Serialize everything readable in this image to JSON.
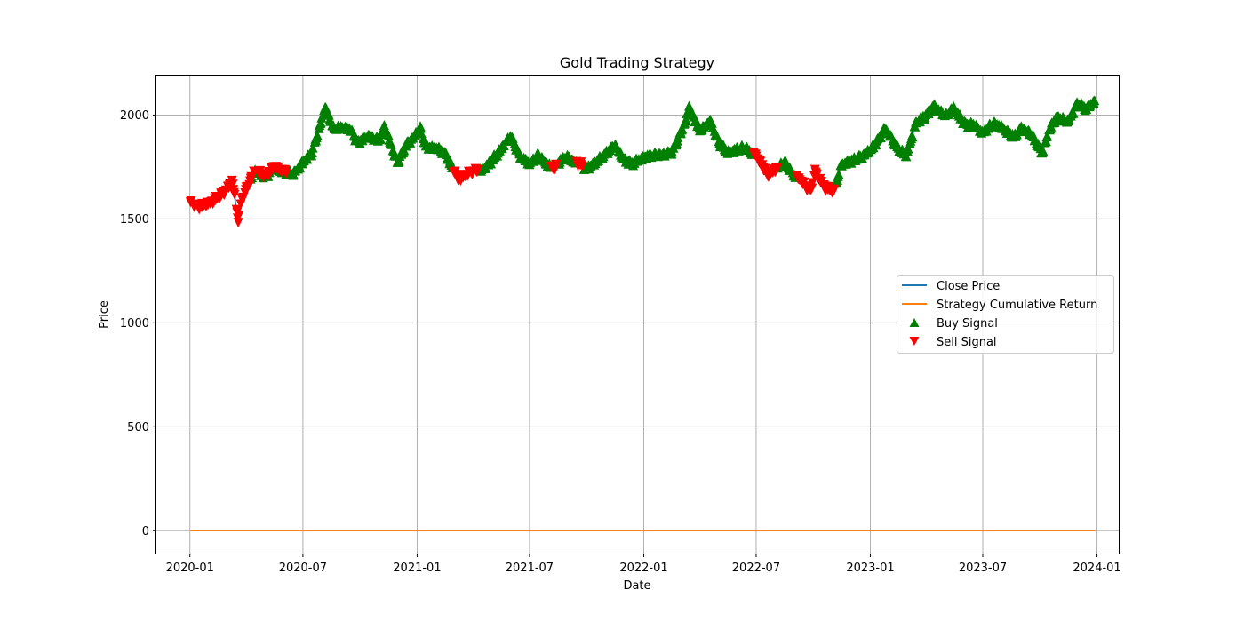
{
  "chart_data": {
    "type": "line",
    "title": "Gold Trading Strategy",
    "xlabel": "Date",
    "ylabel": "Price",
    "xlim": [
      "2019-11-08",
      "2024-02-05"
    ],
    "ylim": [
      -110,
      2190
    ],
    "x_ticks": [
      "2020-01",
      "2020-07",
      "2021-01",
      "2021-07",
      "2022-01",
      "2022-07",
      "2023-01",
      "2023-07",
      "2024-01"
    ],
    "y_ticks": [
      0,
      500,
      1000,
      1500,
      2000
    ],
    "grid": true,
    "legend_position": "center-right",
    "series": [
      {
        "name": "Close Price",
        "color": "#1f77b4",
        "x": [
          "2020-01-02",
          "2020-01-15",
          "2020-02-01",
          "2020-02-20",
          "2020-03-01",
          "2020-03-09",
          "2020-03-19",
          "2020-03-24",
          "2020-04-01",
          "2020-04-14",
          "2020-05-01",
          "2020-05-15",
          "2020-06-01",
          "2020-06-15",
          "2020-07-01",
          "2020-07-15",
          "2020-07-27",
          "2020-08-06",
          "2020-08-19",
          "2020-09-01",
          "2020-09-15",
          "2020-09-28",
          "2020-10-15",
          "2020-11-01",
          "2020-11-09",
          "2020-11-30",
          "2020-12-15",
          "2021-01-06",
          "2021-01-15",
          "2021-02-01",
          "2021-02-15",
          "2021-03-08",
          "2021-03-31",
          "2021-04-15",
          "2021-05-01",
          "2021-05-15",
          "2021-06-01",
          "2021-06-16",
          "2021-07-01",
          "2021-07-15",
          "2021-08-09",
          "2021-08-20",
          "2021-09-01",
          "2021-09-29",
          "2021-10-15",
          "2021-11-16",
          "2021-12-01",
          "2021-12-15",
          "2022-01-03",
          "2022-01-25",
          "2022-02-15",
          "2022-03-08",
          "2022-03-15",
          "2022-04-01",
          "2022-04-18",
          "2022-05-01",
          "2022-05-16",
          "2022-06-01",
          "2022-06-15",
          "2022-07-01",
          "2022-07-21",
          "2022-08-15",
          "2022-09-01",
          "2022-09-27",
          "2022-10-04",
          "2022-10-20",
          "2022-11-03",
          "2022-11-15",
          "2022-12-01",
          "2022-12-15",
          "2023-01-03",
          "2023-01-25",
          "2023-02-15",
          "2023-02-28",
          "2023-03-15",
          "2023-04-01",
          "2023-04-13",
          "2023-05-03",
          "2023-05-15",
          "2023-06-01",
          "2023-06-15",
          "2023-07-01",
          "2023-07-19",
          "2023-08-01",
          "2023-08-21",
          "2023-09-01",
          "2023-09-15",
          "2023-10-05",
          "2023-10-15",
          "2023-10-27",
          "2023-11-15",
          "2023-12-01",
          "2023-12-15",
          "2023-12-29"
        ],
        "y": [
          1575,
          1555,
          1575,
          1610,
          1640,
          1680,
          1490,
          1590,
          1640,
          1735,
          1705,
          1745,
          1730,
          1720,
          1775,
          1815,
          1935,
          2045,
          1940,
          1945,
          1930,
          1870,
          1905,
          1880,
          1950,
          1770,
          1860,
          1940,
          1850,
          1840,
          1820,
          1690,
          1725,
          1735,
          1780,
          1840,
          1900,
          1800,
          1770,
          1810,
          1735,
          1785,
          1800,
          1745,
          1770,
          1860,
          1785,
          1770,
          1800,
          1815,
          1820,
          1960,
          2040,
          1930,
          1975,
          1875,
          1820,
          1840,
          1845,
          1800,
          1705,
          1780,
          1710,
          1630,
          1725,
          1650,
          1630,
          1760,
          1780,
          1800,
          1840,
          1935,
          1840,
          1810,
          1960,
          2000,
          2045,
          2000,
          2040,
          1960,
          1955,
          1920,
          1965,
          1940,
          1895,
          1940,
          1920,
          1820,
          1920,
          1990,
          1975,
          2060,
          2030,
          2070
        ]
      },
      {
        "name": "Strategy Cumulative Return",
        "color": "#ff7f0e",
        "x": [
          "2020-01-02",
          "2023-12-29"
        ],
        "y": [
          1,
          1
        ]
      }
    ],
    "signals": [
      {
        "name": "Buy Signal",
        "color": "#008000",
        "marker": "^",
        "ranges": [
          [
            "2020-04-08",
            "2020-07-01"
          ],
          [
            "2020-07-01",
            "2021-03-01"
          ],
          [
            "2021-04-10",
            "2021-08-05"
          ],
          [
            "2021-08-15",
            "2021-09-15"
          ],
          [
            "2021-09-25",
            "2022-06-25"
          ],
          [
            "2022-08-05",
            "2022-09-05"
          ],
          [
            "2022-11-05",
            "2023-12-29"
          ]
        ]
      },
      {
        "name": "Sell Signal",
        "color": "#ff0000",
        "marker": "v",
        "ranges": [
          [
            "2020-01-02",
            "2020-04-14"
          ],
          [
            "2020-04-20",
            "2020-06-05"
          ],
          [
            "2021-03-01",
            "2021-04-10"
          ],
          [
            "2021-08-05",
            "2021-08-15"
          ],
          [
            "2021-09-15",
            "2021-09-25"
          ],
          [
            "2022-06-25",
            "2022-08-05"
          ],
          [
            "2022-09-05",
            "2022-11-05"
          ]
        ]
      }
    ]
  }
}
